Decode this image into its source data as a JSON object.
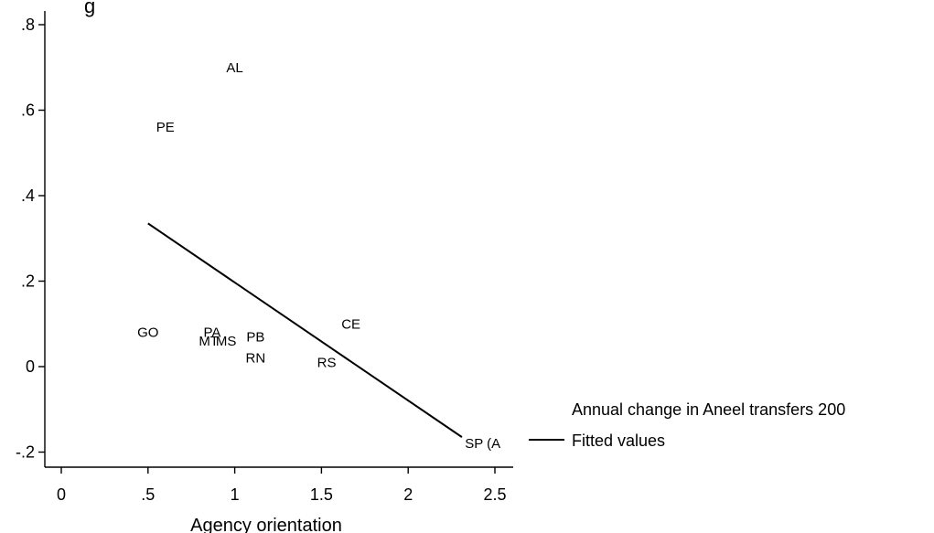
{
  "chart_data": {
    "type": "scatter",
    "title": "",
    "xlabel": "Agency orientation",
    "ylabel": "",
    "xlim": [
      -0.1,
      2.58
    ],
    "ylim": [
      -0.245,
      0.82
    ],
    "x_ticks": [
      "0",
      ".5",
      "1",
      "1.5",
      "2",
      "2.5"
    ],
    "x_tick_values": [
      0,
      0.5,
      1,
      1.5,
      2,
      2.5
    ],
    "y_ticks": [
      "-.2",
      "0",
      ".2",
      ".4",
      ".6",
      ".8"
    ],
    "y_tick_values": [
      -0.2,
      0,
      0.2,
      0.4,
      0.6,
      0.8
    ],
    "grid": false,
    "legend_position": "right",
    "top_label_fragment": "g",
    "series": [
      {
        "name": "Annual change in Aneel transfers 200",
        "marker": "state-label",
        "points": [
          {
            "label": "AL",
            "x": 1.0,
            "y": 0.7
          },
          {
            "label": "PE",
            "x": 0.6,
            "y": 0.56
          },
          {
            "label": "GO",
            "x": 0.5,
            "y": 0.08
          },
          {
            "label": "PA",
            "x": 0.87,
            "y": 0.08
          },
          {
            "label": "MT",
            "x": 0.85,
            "y": 0.06
          },
          {
            "label": "MS",
            "x": 0.95,
            "y": 0.06
          },
          {
            "label": "PB",
            "x": 1.12,
            "y": 0.07
          },
          {
            "label": "RN",
            "x": 1.12,
            "y": 0.02
          },
          {
            "label": "CE",
            "x": 1.67,
            "y": 0.1
          },
          {
            "label": "RS",
            "x": 1.53,
            "y": 0.01
          },
          {
            "label": "SP (A",
            "x": 2.43,
            "y": -0.18
          }
        ]
      },
      {
        "name": "Fitted values",
        "type": "line",
        "x": [
          0.5,
          2.31
        ],
        "y": [
          0.335,
          -0.165
        ]
      }
    ]
  }
}
